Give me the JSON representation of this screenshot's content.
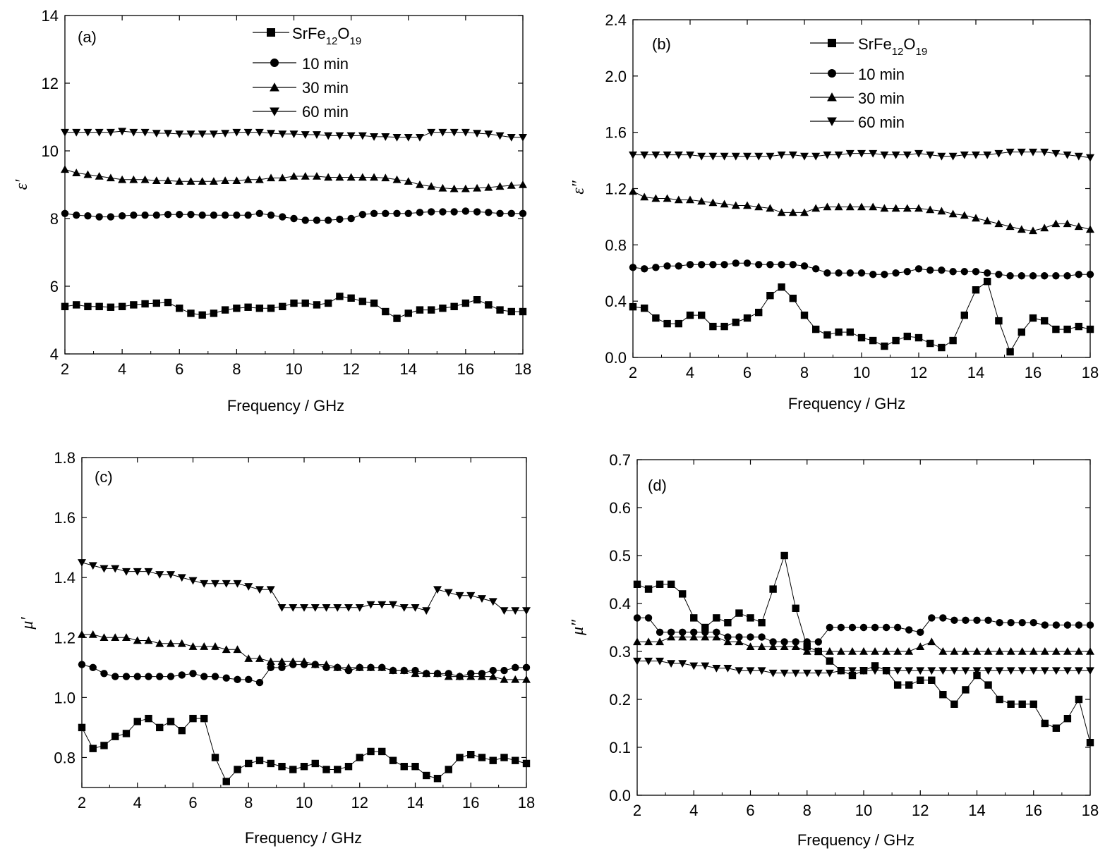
{
  "chart_data": [
    {
      "type": "line",
      "panel": "(a)",
      "xlabel": "Frequency / GHz",
      "ylabel": "ε′",
      "xlim": [
        2,
        18
      ],
      "ylim": [
        4,
        14
      ],
      "xticks": [
        2,
        4,
        6,
        8,
        10,
        12,
        14,
        16,
        18
      ],
      "yticks": [
        4,
        6,
        8,
        10,
        12,
        14
      ],
      "legend": true,
      "legend_position": "top",
      "x": [
        2.0,
        2.4,
        2.8,
        3.2,
        3.6,
        4.0,
        4.4,
        4.8,
        5.2,
        5.6,
        6.0,
        6.4,
        6.8,
        7.2,
        7.6,
        8.0,
        8.4,
        8.8,
        9.2,
        9.6,
        10.0,
        10.4,
        10.8,
        11.2,
        11.6,
        12.0,
        12.4,
        12.8,
        13.2,
        13.6,
        14.0,
        14.4,
        14.8,
        15.2,
        15.6,
        16.0,
        16.4,
        16.8,
        17.2,
        17.6,
        18.0
      ],
      "series": [
        {
          "name": "SrFe12O19",
          "marker": "square",
          "values": [
            5.4,
            5.45,
            5.4,
            5.4,
            5.38,
            5.4,
            5.45,
            5.48,
            5.5,
            5.52,
            5.35,
            5.2,
            5.15,
            5.2,
            5.3,
            5.35,
            5.38,
            5.35,
            5.35,
            5.4,
            5.5,
            5.5,
            5.45,
            5.5,
            5.7,
            5.65,
            5.55,
            5.5,
            5.25,
            5.05,
            5.2,
            5.3,
            5.3,
            5.35,
            5.4,
            5.5,
            5.6,
            5.45,
            5.3,
            5.25,
            5.25
          ]
        },
        {
          "name": "10 min",
          "marker": "circle",
          "values": [
            8.15,
            8.1,
            8.08,
            8.05,
            8.05,
            8.08,
            8.1,
            8.1,
            8.1,
            8.12,
            8.12,
            8.12,
            8.1,
            8.1,
            8.1,
            8.1,
            8.1,
            8.15,
            8.1,
            8.05,
            8.0,
            7.95,
            7.95,
            7.95,
            7.98,
            8.0,
            8.12,
            8.15,
            8.15,
            8.15,
            8.15,
            8.18,
            8.2,
            8.2,
            8.2,
            8.22,
            8.2,
            8.18,
            8.15,
            8.15,
            8.15
          ]
        },
        {
          "name": "30 min",
          "marker": "triangle-up",
          "values": [
            9.45,
            9.35,
            9.3,
            9.25,
            9.2,
            9.15,
            9.15,
            9.15,
            9.12,
            9.12,
            9.1,
            9.1,
            9.1,
            9.1,
            9.12,
            9.12,
            9.15,
            9.15,
            9.2,
            9.2,
            9.25,
            9.25,
            9.25,
            9.22,
            9.22,
            9.22,
            9.22,
            9.22,
            9.2,
            9.15,
            9.1,
            9.0,
            8.95,
            8.9,
            8.88,
            8.88,
            8.9,
            8.92,
            8.95,
            8.98,
            9.0
          ]
        },
        {
          "name": "60 min",
          "marker": "triangle-down",
          "values": [
            10.55,
            10.55,
            10.55,
            10.55,
            10.55,
            10.58,
            10.55,
            10.55,
            10.52,
            10.52,
            10.5,
            10.5,
            10.5,
            10.5,
            10.52,
            10.55,
            10.55,
            10.55,
            10.52,
            10.5,
            10.5,
            10.48,
            10.48,
            10.45,
            10.45,
            10.45,
            10.45,
            10.42,
            10.42,
            10.4,
            10.4,
            10.4,
            10.55,
            10.55,
            10.55,
            10.55,
            10.52,
            10.5,
            10.45,
            10.4,
            10.4
          ]
        }
      ]
    },
    {
      "type": "line",
      "panel": "(b)",
      "xlabel": "Frequency / GHz",
      "ylabel": "ε″",
      "xlim": [
        2,
        18
      ],
      "ylim": [
        0,
        2.4
      ],
      "xticks": [
        2,
        4,
        6,
        8,
        10,
        12,
        14,
        16,
        18
      ],
      "yticks": [
        0.0,
        0.4,
        0.8,
        1.2,
        1.6,
        2.0,
        2.4
      ],
      "legend": true,
      "legend_position": "top",
      "x": [
        2.0,
        2.4,
        2.8,
        3.2,
        3.6,
        4.0,
        4.4,
        4.8,
        5.2,
        5.6,
        6.0,
        6.4,
        6.8,
        7.2,
        7.6,
        8.0,
        8.4,
        8.8,
        9.2,
        9.6,
        10.0,
        10.4,
        10.8,
        11.2,
        11.6,
        12.0,
        12.4,
        12.8,
        13.2,
        13.6,
        14.0,
        14.4,
        14.8,
        15.2,
        15.6,
        16.0,
        16.4,
        16.8,
        17.2,
        17.6,
        18.0
      ],
      "series": [
        {
          "name": "SrFe12O19",
          "marker": "square",
          "values": [
            0.36,
            0.35,
            0.28,
            0.24,
            0.24,
            0.3,
            0.3,
            0.22,
            0.22,
            0.25,
            0.28,
            0.32,
            0.44,
            0.5,
            0.42,
            0.3,
            0.2,
            0.16,
            0.18,
            0.18,
            0.14,
            0.12,
            0.08,
            0.12,
            0.15,
            0.14,
            0.1,
            0.07,
            0.12,
            0.3,
            0.48,
            0.54,
            0.26,
            0.04,
            0.18,
            0.28,
            0.26,
            0.2,
            0.2,
            0.22,
            0.2
          ]
        },
        {
          "name": "10 min",
          "marker": "circle",
          "values": [
            0.64,
            0.63,
            0.64,
            0.65,
            0.65,
            0.66,
            0.66,
            0.66,
            0.66,
            0.67,
            0.67,
            0.66,
            0.66,
            0.66,
            0.66,
            0.65,
            0.63,
            0.6,
            0.6,
            0.6,
            0.6,
            0.59,
            0.59,
            0.6,
            0.61,
            0.63,
            0.62,
            0.62,
            0.61,
            0.61,
            0.61,
            0.6,
            0.59,
            0.58,
            0.58,
            0.58,
            0.58,
            0.58,
            0.58,
            0.59,
            0.59
          ]
        },
        {
          "name": "30 min",
          "marker": "triangle-up",
          "values": [
            1.18,
            1.14,
            1.13,
            1.13,
            1.12,
            1.12,
            1.11,
            1.1,
            1.09,
            1.08,
            1.08,
            1.07,
            1.06,
            1.03,
            1.03,
            1.03,
            1.06,
            1.07,
            1.07,
            1.07,
            1.07,
            1.07,
            1.06,
            1.06,
            1.06,
            1.06,
            1.05,
            1.04,
            1.02,
            1.01,
            0.99,
            0.97,
            0.95,
            0.93,
            0.91,
            0.9,
            0.92,
            0.95,
            0.95,
            0.93,
            0.91
          ]
        },
        {
          "name": "60 min",
          "marker": "triangle-down",
          "values": [
            1.44,
            1.44,
            1.44,
            1.44,
            1.44,
            1.44,
            1.43,
            1.43,
            1.43,
            1.43,
            1.43,
            1.43,
            1.43,
            1.44,
            1.44,
            1.43,
            1.43,
            1.44,
            1.44,
            1.45,
            1.45,
            1.45,
            1.44,
            1.44,
            1.44,
            1.45,
            1.44,
            1.43,
            1.43,
            1.44,
            1.44,
            1.44,
            1.45,
            1.46,
            1.46,
            1.46,
            1.46,
            1.45,
            1.44,
            1.43,
            1.42
          ]
        }
      ]
    },
    {
      "type": "line",
      "panel": "(c)",
      "xlabel": "Frequency / GHz",
      "ylabel": "μ′",
      "xlim": [
        2,
        18
      ],
      "ylim": [
        0.7,
        1.8
      ],
      "xticks": [
        2,
        4,
        6,
        8,
        10,
        12,
        14,
        16,
        18
      ],
      "yticks": [
        0.8,
        1.0,
        1.2,
        1.4,
        1.6,
        1.8
      ],
      "legend": false,
      "x": [
        2.0,
        2.4,
        2.8,
        3.2,
        3.6,
        4.0,
        4.4,
        4.8,
        5.2,
        5.6,
        6.0,
        6.4,
        6.8,
        7.2,
        7.6,
        8.0,
        8.4,
        8.8,
        9.2,
        9.6,
        10.0,
        10.4,
        10.8,
        11.2,
        11.6,
        12.0,
        12.4,
        12.8,
        13.2,
        13.6,
        14.0,
        14.4,
        14.8,
        15.2,
        15.6,
        16.0,
        16.4,
        16.8,
        17.2,
        17.6,
        18.0
      ],
      "series": [
        {
          "name": "SrFe12O19",
          "marker": "square",
          "values": [
            0.9,
            0.83,
            0.84,
            0.87,
            0.88,
            0.92,
            0.93,
            0.9,
            0.92,
            0.89,
            0.93,
            0.93,
            0.8,
            0.72,
            0.76,
            0.78,
            0.79,
            0.78,
            0.77,
            0.76,
            0.77,
            0.78,
            0.76,
            0.76,
            0.77,
            0.8,
            0.82,
            0.82,
            0.79,
            0.77,
            0.77,
            0.74,
            0.73,
            0.76,
            0.8,
            0.81,
            0.8,
            0.79,
            0.8,
            0.79,
            0.78
          ]
        },
        {
          "name": "10 min",
          "marker": "circle",
          "values": [
            1.11,
            1.1,
            1.08,
            1.07,
            1.07,
            1.07,
            1.07,
            1.07,
            1.07,
            1.075,
            1.08,
            1.07,
            1.07,
            1.065,
            1.06,
            1.06,
            1.05,
            1.1,
            1.1,
            1.11,
            1.11,
            1.11,
            1.1,
            1.1,
            1.09,
            1.1,
            1.1,
            1.1,
            1.09,
            1.09,
            1.09,
            1.08,
            1.08,
            1.08,
            1.07,
            1.08,
            1.08,
            1.09,
            1.09,
            1.1,
            1.1
          ]
        },
        {
          "name": "30 min",
          "marker": "triangle-up",
          "values": [
            1.21,
            1.21,
            1.2,
            1.2,
            1.2,
            1.19,
            1.19,
            1.18,
            1.18,
            1.18,
            1.17,
            1.17,
            1.17,
            1.16,
            1.16,
            1.13,
            1.13,
            1.12,
            1.12,
            1.12,
            1.12,
            1.11,
            1.11,
            1.1,
            1.1,
            1.1,
            1.1,
            1.1,
            1.09,
            1.09,
            1.08,
            1.08,
            1.08,
            1.07,
            1.07,
            1.07,
            1.07,
            1.07,
            1.06,
            1.06,
            1.06
          ]
        },
        {
          "name": "60 min",
          "marker": "triangle-down",
          "values": [
            1.45,
            1.44,
            1.43,
            1.43,
            1.42,
            1.42,
            1.42,
            1.41,
            1.41,
            1.4,
            1.39,
            1.38,
            1.38,
            1.38,
            1.38,
            1.37,
            1.36,
            1.36,
            1.3,
            1.3,
            1.3,
            1.3,
            1.3,
            1.3,
            1.3,
            1.3,
            1.31,
            1.31,
            1.31,
            1.3,
            1.3,
            1.29,
            1.36,
            1.35,
            1.34,
            1.34,
            1.33,
            1.32,
            1.29,
            1.29,
            1.29
          ]
        }
      ]
    },
    {
      "type": "line",
      "panel": "(d)",
      "xlabel": "Frequency / GHz",
      "ylabel": "μ″",
      "xlim": [
        2,
        18
      ],
      "ylim": [
        0,
        0.7
      ],
      "xticks": [
        2,
        4,
        6,
        8,
        10,
        12,
        14,
        16,
        18
      ],
      "yticks": [
        0.0,
        0.1,
        0.2,
        0.3,
        0.4,
        0.5,
        0.6,
        0.7
      ],
      "legend": false,
      "x": [
        2.0,
        2.4,
        2.8,
        3.2,
        3.6,
        4.0,
        4.4,
        4.8,
        5.2,
        5.6,
        6.0,
        6.4,
        6.8,
        7.2,
        7.6,
        8.0,
        8.4,
        8.8,
        9.2,
        9.6,
        10.0,
        10.4,
        10.8,
        11.2,
        11.6,
        12.0,
        12.4,
        12.8,
        13.2,
        13.6,
        14.0,
        14.4,
        14.8,
        15.2,
        15.6,
        16.0,
        16.4,
        16.8,
        17.2,
        17.6,
        18.0
      ],
      "series": [
        {
          "name": "SrFe12O19",
          "marker": "square",
          "values": [
            0.44,
            0.43,
            0.44,
            0.44,
            0.42,
            0.37,
            0.35,
            0.37,
            0.36,
            0.38,
            0.37,
            0.36,
            0.43,
            0.5,
            0.39,
            0.31,
            0.3,
            0.28,
            0.26,
            0.25,
            0.26,
            0.27,
            0.26,
            0.23,
            0.23,
            0.24,
            0.24,
            0.21,
            0.19,
            0.22,
            0.25,
            0.23,
            0.2,
            0.19,
            0.19,
            0.19,
            0.15,
            0.14,
            0.16,
            0.2,
            0.11
          ]
        },
        {
          "name": "10 min",
          "marker": "circle",
          "values": [
            0.37,
            0.37,
            0.34,
            0.34,
            0.34,
            0.34,
            0.34,
            0.34,
            0.33,
            0.33,
            0.33,
            0.33,
            0.32,
            0.32,
            0.32,
            0.32,
            0.32,
            0.35,
            0.35,
            0.35,
            0.35,
            0.35,
            0.35,
            0.35,
            0.345,
            0.34,
            0.37,
            0.37,
            0.365,
            0.365,
            0.365,
            0.365,
            0.36,
            0.36,
            0.36,
            0.36,
            0.355,
            0.355,
            0.355,
            0.355,
            0.355
          ]
        },
        {
          "name": "30 min",
          "marker": "triangle-up",
          "values": [
            0.32,
            0.32,
            0.32,
            0.33,
            0.33,
            0.33,
            0.33,
            0.33,
            0.32,
            0.32,
            0.31,
            0.31,
            0.31,
            0.31,
            0.31,
            0.3,
            0.3,
            0.3,
            0.3,
            0.3,
            0.3,
            0.3,
            0.3,
            0.3,
            0.3,
            0.31,
            0.32,
            0.3,
            0.3,
            0.3,
            0.3,
            0.3,
            0.3,
            0.3,
            0.3,
            0.3,
            0.3,
            0.3,
            0.3,
            0.3,
            0.3
          ]
        },
        {
          "name": "60 min",
          "marker": "triangle-down",
          "values": [
            0.28,
            0.28,
            0.28,
            0.275,
            0.275,
            0.27,
            0.27,
            0.265,
            0.265,
            0.26,
            0.26,
            0.26,
            0.255,
            0.255,
            0.255,
            0.255,
            0.255,
            0.255,
            0.26,
            0.26,
            0.26,
            0.26,
            0.26,
            0.26,
            0.26,
            0.26,
            0.26,
            0.26,
            0.26,
            0.26,
            0.26,
            0.26,
            0.26,
            0.26,
            0.26,
            0.26,
            0.26,
            0.26,
            0.26,
            0.26,
            0.26
          ]
        }
      ]
    }
  ],
  "legend_labels": {
    "s1_base": "SrFe",
    "s1_sub1": "12",
    "s1_mid": "O",
    "s1_sub2": "19",
    "s2": "10 min",
    "s3": "30 min",
    "s4": "60 min"
  }
}
